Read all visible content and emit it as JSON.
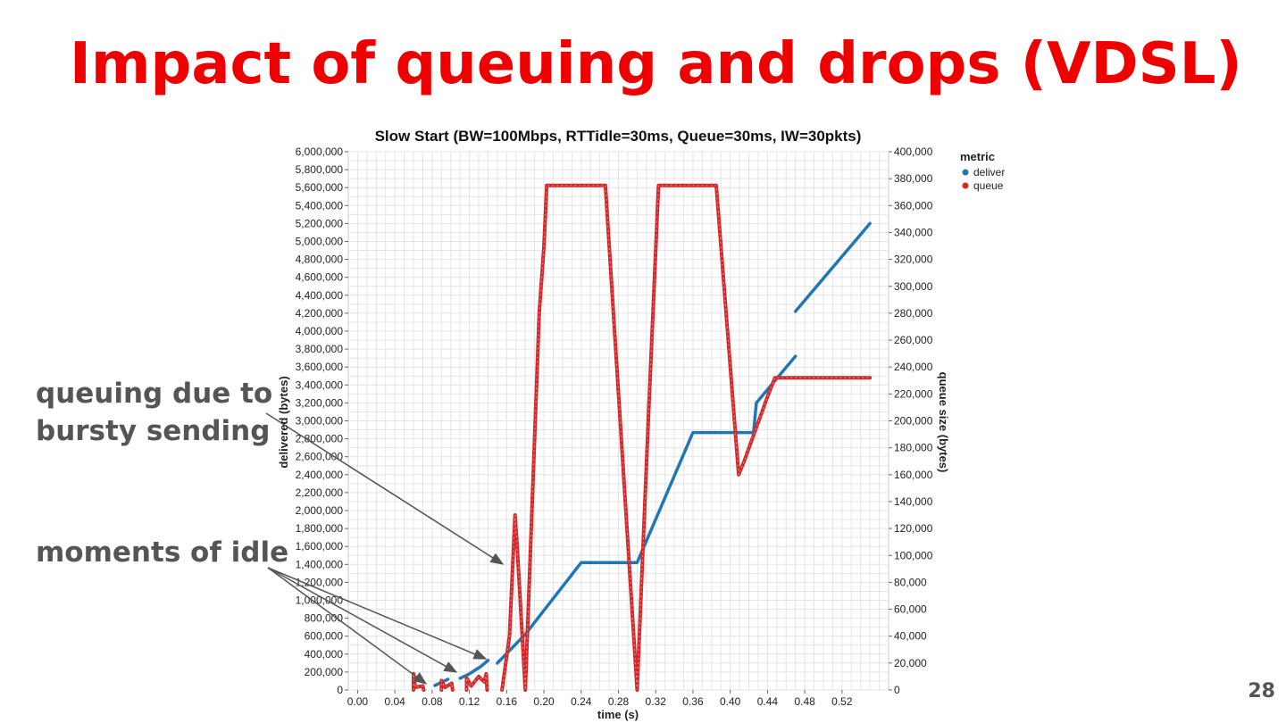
{
  "slide": {
    "title": "Impact of queuing and drops (VDSL)",
    "page_number": "28",
    "annotations": [
      {
        "id": "bursty",
        "lines": [
          "queuing due to",
          "bursty sending"
        ]
      },
      {
        "id": "idle",
        "lines": [
          "moments of idle"
        ]
      }
    ]
  },
  "colors": {
    "title": "#ee0000",
    "annotation_text": "#555555",
    "deliver": "#1f77b4",
    "queue": "#d62728",
    "arrow": "#555555",
    "grid": "#e4e4e4"
  },
  "chart_data": {
    "type": "line",
    "title": "Slow Start (BW=100Mbps, RTTidle=30ms, Queue=30ms, IW=30pkts)",
    "xlabel": "time (s)",
    "ylabel": "delivered (bytes)",
    "y2label": "queue size (bytes)",
    "xlim": [
      -0.01,
      0.57
    ],
    "ylim": [
      0,
      6000000
    ],
    "y2lim": [
      0,
      400000
    ],
    "x_ticks": [
      0.0,
      0.04,
      0.08,
      0.12,
      0.16,
      0.2,
      0.24,
      0.28,
      0.32,
      0.36,
      0.4,
      0.44,
      0.48,
      0.52
    ],
    "x_tick_labels": [
      "0.00",
      "0.04",
      "0.08",
      "0.12",
      "0.16",
      "0.20",
      "0.24",
      "0.28",
      "0.32",
      "0.36",
      "0.40",
      "0.44",
      "0.48",
      "0.52"
    ],
    "y_ticks": [
      0,
      200000,
      400000,
      600000,
      800000,
      1000000,
      1200000,
      1400000,
      1600000,
      1800000,
      2000000,
      2200000,
      2400000,
      2600000,
      2800000,
      3000000,
      3200000,
      3400000,
      3600000,
      3800000,
      4000000,
      4200000,
      4400000,
      4600000,
      4800000,
      5000000,
      5200000,
      5400000,
      5600000,
      5800000,
      6000000
    ],
    "y_tick_labels": [
      "0",
      "200,000",
      "400,000",
      "600,000",
      "800,000",
      "1,000,000",
      "1,200,000",
      "1,400,000",
      "1,600,000",
      "1,800,000",
      "2,000,000",
      "2,200,000",
      "2,400,000",
      "2,600,000",
      "2,800,000",
      "3,000,000",
      "3,200,000",
      "3,400,000",
      "3,600,000",
      "3,800,000",
      "4,000,000",
      "4,200,000",
      "4,400,000",
      "4,600,000",
      "4,800,000",
      "5,000,000",
      "5,200,000",
      "5,400,000",
      "5,600,000",
      "5,800,000",
      "6,000,000"
    ],
    "y2_ticks": [
      0,
      20000,
      40000,
      60000,
      80000,
      100000,
      120000,
      140000,
      160000,
      180000,
      200000,
      220000,
      240000,
      260000,
      280000,
      300000,
      320000,
      340000,
      360000,
      380000,
      400000
    ],
    "y2_tick_labels": [
      "0",
      "20,000",
      "40,000",
      "60,000",
      "80,000",
      "100,000",
      "120,000",
      "140,000",
      "160,000",
      "180,000",
      "200,000",
      "220,000",
      "240,000",
      "260,000",
      "280,000",
      "300,000",
      "320,000",
      "340,000",
      "360,000",
      "380,000",
      "400,000"
    ],
    "grid": true,
    "legend": {
      "title": "metric",
      "position": "top-right"
    },
    "series": [
      {
        "name": "deliver",
        "axis": "left",
        "color": "#1f77b4",
        "segments": [
          [
            [
              0.083,
              50000
            ],
            [
              0.097,
              120000
            ]
          ],
          [
            [
              0.11,
              130000
            ],
            [
              0.12,
              180000
            ],
            [
              0.132,
              260000
            ],
            [
              0.14,
              330000
            ]
          ],
          [
            [
              0.15,
              300000
            ],
            [
              0.18,
              620000
            ],
            [
              0.24,
              1420000
            ],
            [
              0.3,
              1420000
            ],
            [
              0.36,
              2870000
            ],
            [
              0.425,
              2870000
            ],
            [
              0.428,
              3200000
            ],
            [
              0.47,
              3720000
            ]
          ],
          [
            [
              0.47,
              4220000
            ],
            [
              0.55,
              5200000
            ]
          ]
        ]
      },
      {
        "name": "queue",
        "axis": "right",
        "color": "#d62728",
        "segments": [
          [
            [
              0.06,
              0
            ],
            [
              0.06,
              12000
            ],
            [
              0.062,
              2000
            ],
            [
              0.07,
              3000
            ],
            [
              0.071,
              0
            ]
          ],
          [
            [
              0.09,
              0
            ],
            [
              0.09,
              7000
            ],
            [
              0.094,
              2000
            ],
            [
              0.101,
              5000
            ],
            [
              0.102,
              0
            ]
          ],
          [
            [
              0.117,
              0
            ],
            [
              0.117,
              9000
            ],
            [
              0.122,
              3000
            ],
            [
              0.13,
              10000
            ],
            [
              0.136,
              6000
            ],
            [
              0.138,
              12000
            ],
            [
              0.139,
              0
            ]
          ],
          [
            [
              0.155,
              0
            ],
            [
              0.163,
              40000
            ],
            [
              0.167,
              100000
            ],
            [
              0.169,
              130000
            ],
            [
              0.171,
              110000
            ],
            [
              0.18,
              0
            ],
            [
              0.195,
              280000
            ],
            [
              0.2,
              330000
            ],
            [
              0.203,
              375000
            ],
            [
              0.266,
              375000
            ],
            [
              0.3,
              0
            ],
            [
              0.312,
              200000
            ],
            [
              0.323,
              375000
            ],
            [
              0.385,
              375000
            ],
            [
              0.409,
              160000
            ],
            [
              0.415,
              170000
            ],
            [
              0.44,
              218000
            ],
            [
              0.448,
              232000
            ],
            [
              0.55,
              232000
            ]
          ]
        ]
      }
    ]
  }
}
